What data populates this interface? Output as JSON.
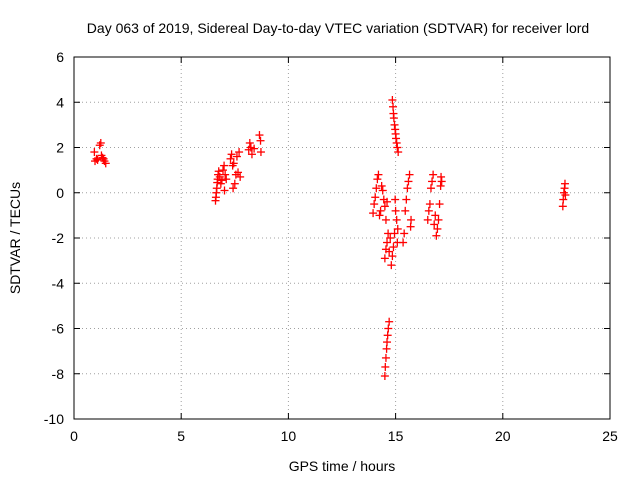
{
  "chart_data": {
    "type": "scatter",
    "title": "Day 063 of 2019, Sidereal Day-to-day VTEC variation (SDTVAR) for receiver lord",
    "xlabel": "GPS time / hours",
    "ylabel": "SDTVAR / TECUs",
    "xlim": [
      0,
      25
    ],
    "ylim": [
      -10,
      6
    ],
    "xticks": [
      0,
      5,
      10,
      15,
      20,
      25
    ],
    "yticks": [
      -10,
      -8,
      -6,
      -4,
      -2,
      0,
      2,
      4,
      6
    ],
    "grid": true,
    "marker": "+",
    "color": "#ff0000",
    "series": [
      {
        "values": [
          [
            0.95,
            1.8
          ],
          [
            0.98,
            1.4
          ],
          [
            1.05,
            1.5
          ],
          [
            1.1,
            1.45
          ],
          [
            1.2,
            2.1
          ],
          [
            1.25,
            2.2
          ],
          [
            1.28,
            1.65
          ],
          [
            1.33,
            1.55
          ],
          [
            1.38,
            1.5
          ],
          [
            1.42,
            1.4
          ],
          [
            1.48,
            1.3
          ],
          [
            6.6,
            -0.35
          ],
          [
            6.62,
            -0.2
          ],
          [
            6.64,
            0.0
          ],
          [
            6.66,
            0.2
          ],
          [
            6.68,
            0.45
          ],
          [
            6.7,
            0.6
          ],
          [
            6.72,
            0.8
          ],
          [
            6.75,
            0.95
          ],
          [
            6.8,
            0.7
          ],
          [
            6.85,
            0.4
          ],
          [
            6.9,
            0.55
          ],
          [
            6.95,
            1.0
          ],
          [
            7.0,
            1.2
          ],
          [
            7.02,
            0.1
          ],
          [
            7.05,
            0.8
          ],
          [
            7.1,
            0.6
          ],
          [
            7.3,
            1.5
          ],
          [
            7.35,
            1.7
          ],
          [
            7.4,
            1.2
          ],
          [
            7.42,
            0.2
          ],
          [
            7.45,
            1.3
          ],
          [
            7.5,
            0.4
          ],
          [
            7.55,
            0.8
          ],
          [
            7.6,
            1.6
          ],
          [
            7.65,
            0.9
          ],
          [
            7.7,
            1.8
          ],
          [
            7.75,
            0.7
          ],
          [
            8.15,
            1.9
          ],
          [
            8.2,
            2.2
          ],
          [
            8.25,
            2.0
          ],
          [
            8.3,
            1.7
          ],
          [
            8.4,
            1.95
          ],
          [
            8.65,
            2.55
          ],
          [
            8.7,
            2.3
          ],
          [
            8.72,
            1.8
          ],
          [
            13.95,
            -0.9
          ],
          [
            14.0,
            -0.5
          ],
          [
            14.05,
            -0.2
          ],
          [
            14.1,
            0.2
          ],
          [
            14.15,
            0.6
          ],
          [
            14.2,
            0.8
          ],
          [
            14.25,
            -1.0
          ],
          [
            14.3,
            -0.8
          ],
          [
            14.35,
            0.3
          ],
          [
            14.4,
            0.1
          ],
          [
            14.45,
            -0.3
          ],
          [
            14.5,
            -0.6
          ],
          [
            14.55,
            -1.2
          ],
          [
            14.6,
            -0.4
          ],
          [
            14.5,
            -2.9
          ],
          [
            14.55,
            -2.5
          ],
          [
            14.6,
            -2.2
          ],
          [
            14.65,
            -1.8
          ],
          [
            14.7,
            -2.6
          ],
          [
            14.75,
            -2.0
          ],
          [
            14.8,
            -3.2
          ],
          [
            14.85,
            -2.8
          ],
          [
            14.9,
            -2.4
          ],
          [
            14.95,
            -1.8
          ],
          [
            14.98,
            -0.3
          ],
          [
            15.0,
            -0.8
          ],
          [
            15.05,
            -1.2
          ],
          [
            15.08,
            -2.2
          ],
          [
            15.1,
            -1.6
          ],
          [
            14.85,
            4.1
          ],
          [
            14.88,
            3.8
          ],
          [
            14.9,
            3.5
          ],
          [
            14.92,
            3.3
          ],
          [
            14.95,
            3.0
          ],
          [
            14.98,
            2.8
          ],
          [
            15.0,
            2.6
          ],
          [
            15.02,
            2.4
          ],
          [
            15.05,
            2.2
          ],
          [
            15.08,
            2.0
          ],
          [
            15.12,
            1.8
          ],
          [
            14.5,
            -8.1
          ],
          [
            14.52,
            -7.7
          ],
          [
            14.55,
            -7.3
          ],
          [
            14.58,
            -6.9
          ],
          [
            14.6,
            -6.6
          ],
          [
            14.63,
            -6.3
          ],
          [
            14.66,
            -6.0
          ],
          [
            14.7,
            -5.7
          ],
          [
            15.35,
            -2.2
          ],
          [
            15.4,
            -1.8
          ],
          [
            15.45,
            -0.8
          ],
          [
            15.5,
            -0.3
          ],
          [
            15.55,
            0.2
          ],
          [
            15.6,
            0.5
          ],
          [
            15.65,
            0.8
          ],
          [
            15.7,
            -1.5
          ],
          [
            15.72,
            -1.2
          ],
          [
            16.5,
            -1.2
          ],
          [
            16.55,
            -0.8
          ],
          [
            16.6,
            -0.5
          ],
          [
            16.65,
            0.2
          ],
          [
            16.7,
            0.5
          ],
          [
            16.75,
            0.8
          ],
          [
            16.8,
            -1.4
          ],
          [
            16.85,
            -1.0
          ],
          [
            16.9,
            -1.9
          ],
          [
            16.95,
            -1.6
          ],
          [
            17.0,
            -1.2
          ],
          [
            17.05,
            -0.5
          ],
          [
            17.1,
            0.3
          ],
          [
            17.12,
            0.7
          ],
          [
            17.15,
            0.5
          ],
          [
            22.8,
            -0.6
          ],
          [
            22.82,
            -0.3
          ],
          [
            22.85,
            0.0
          ],
          [
            22.88,
            0.2
          ],
          [
            22.9,
            0.4
          ],
          [
            22.92,
            -0.1
          ]
        ]
      }
    ]
  }
}
